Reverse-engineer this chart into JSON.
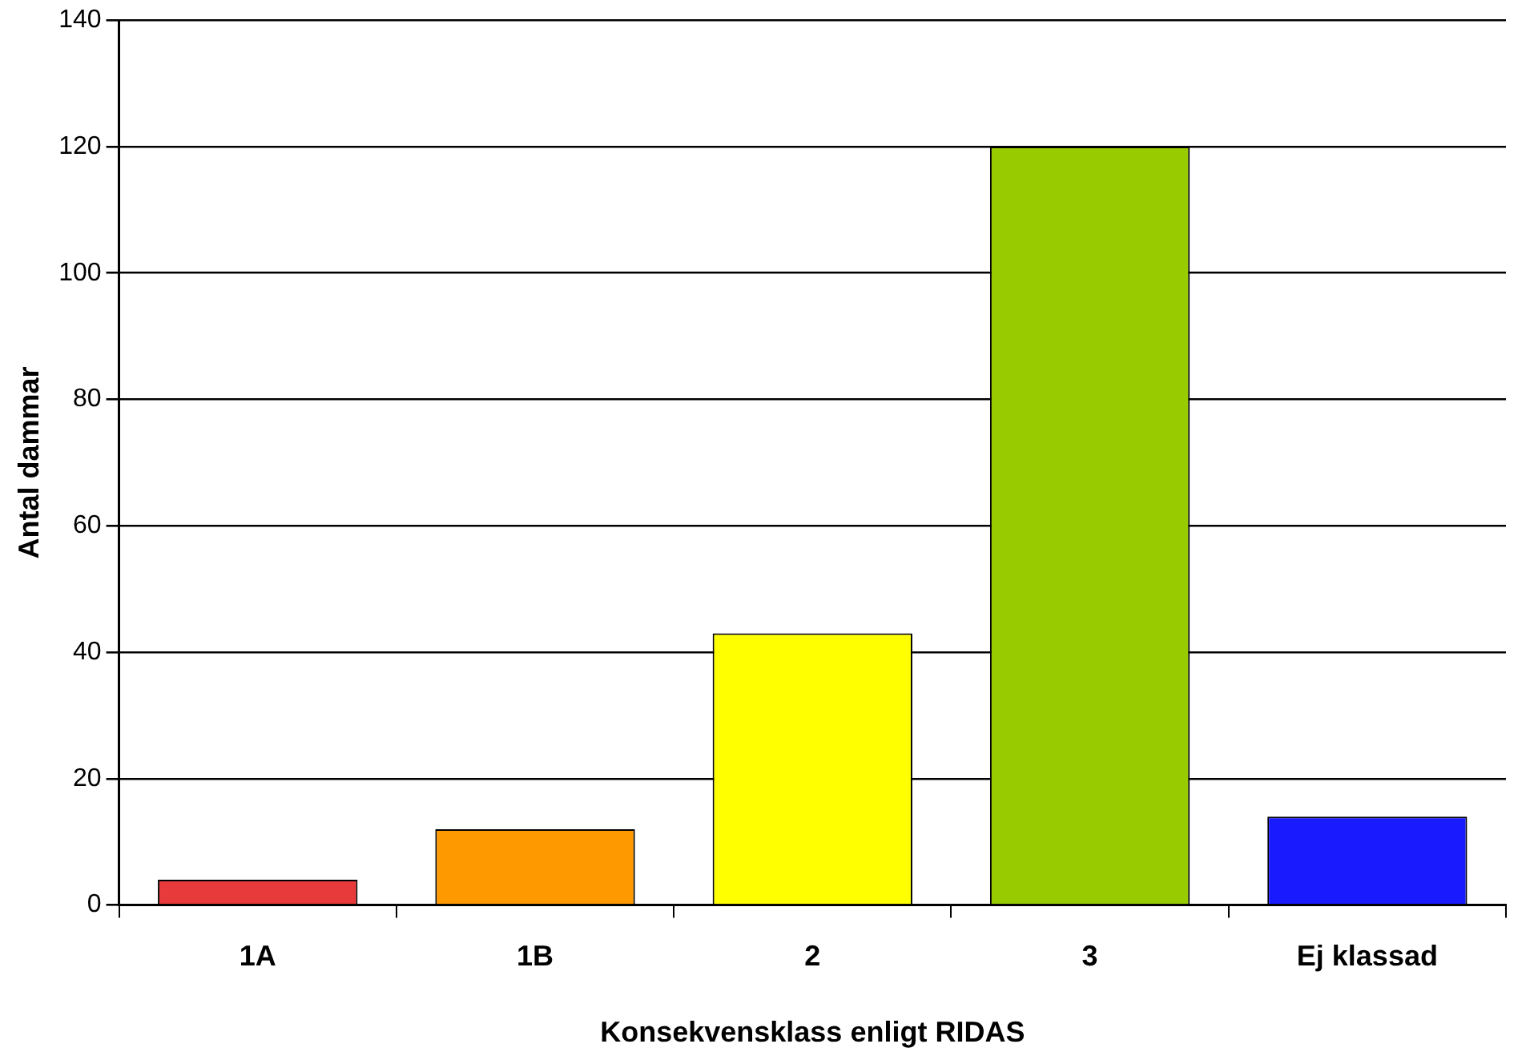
{
  "chart_data": {
    "type": "bar",
    "xlabel": "Konsekvensklass enligt RIDAS",
    "ylabel": "Antal dammar",
    "categories": [
      "1A",
      "1B",
      "2",
      "3",
      "Ej klassad"
    ],
    "values": [
      4,
      12,
      43,
      120,
      14
    ],
    "colors": [
      "#e83a3a",
      "#ff9900",
      "#ffff00",
      "#99cc00",
      "#1a1aff"
    ],
    "ylim": [
      0,
      140
    ],
    "yticks": [
      0,
      20,
      40,
      60,
      80,
      100,
      120,
      140
    ],
    "grid": "y",
    "legend": false
  }
}
